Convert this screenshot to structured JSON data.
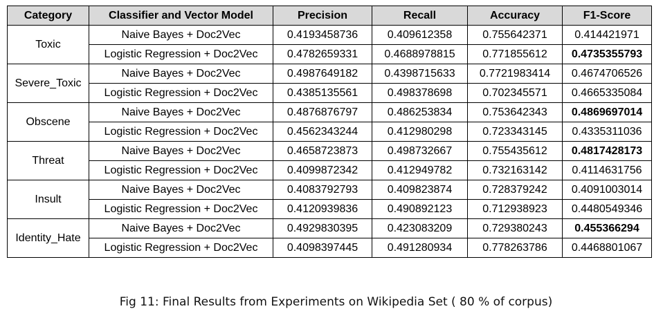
{
  "table": {
    "headers": [
      "Category",
      "Classifier and Vector Model",
      "Precision",
      "Recall",
      "Accuracy",
      "F1-Score"
    ],
    "groups": [
      {
        "category": "Toxic",
        "rows": [
          {
            "model": "Naive Bayes + Doc2Vec",
            "precision": "0.4193458736",
            "recall": "0.409612358",
            "accuracy": "0.755642371",
            "f1": "0.414421971",
            "f1_bold": false
          },
          {
            "model": "Logistic Regression + Doc2Vec",
            "precision": "0.4782659331",
            "recall": "0.4688978815",
            "accuracy": "0.771855612",
            "f1": "0.4735355793",
            "f1_bold": true
          }
        ]
      },
      {
        "category": "Severe_Toxic",
        "rows": [
          {
            "model": "Naive Bayes + Doc2Vec",
            "precision": "0.4987649182",
            "recall": "0.4398715633",
            "accuracy": "0.7721983414",
            "f1": "0.4674706526",
            "f1_bold": false
          },
          {
            "model": "Logistic Regression + Doc2Vec",
            "precision": "0.4385135561",
            "recall": "0.498378698",
            "accuracy": "0.702345571",
            "f1": "0.4665335084",
            "f1_bold": false
          }
        ]
      },
      {
        "category": "Obscene",
        "rows": [
          {
            "model": "Naive Bayes + Doc2Vec",
            "precision": "0.4876876797",
            "recall": "0.486253834",
            "accuracy": "0.753642343",
            "f1": "0.4869697014",
            "f1_bold": true
          },
          {
            "model": "Logistic Regression + Doc2Vec",
            "precision": "0.4562343244",
            "recall": "0.412980298",
            "accuracy": "0.723343145",
            "f1": "0.4335311036",
            "f1_bold": false
          }
        ]
      },
      {
        "category": "Threat",
        "rows": [
          {
            "model": "Naive Bayes + Doc2Vec",
            "precision": "0.4658723873",
            "recall": "0.498732667",
            "accuracy": "0.755435612",
            "f1": "0.4817428173",
            "f1_bold": true
          },
          {
            "model": "Logistic Regression + Doc2Vec",
            "precision": "0.4099872342",
            "recall": "0.412949782",
            "accuracy": "0.732163142",
            "f1": "0.4114631756",
            "f1_bold": false
          }
        ]
      },
      {
        "category": "Insult",
        "rows": [
          {
            "model": "Naive Bayes + Doc2Vec",
            "precision": "0.4083792793",
            "recall": "0.409823874",
            "accuracy": "0.728379242",
            "f1": "0.4091003014",
            "f1_bold": false
          },
          {
            "model": "Logistic Regression + Doc2Vec",
            "precision": "0.4120939836",
            "recall": "0.490892123",
            "accuracy": "0.712938923",
            "f1": "0.4480549346",
            "f1_bold": false
          }
        ]
      },
      {
        "category": "Identity_Hate",
        "rows": [
          {
            "model": "Naive Bayes + Doc2Vec",
            "precision": "0.4929830395",
            "recall": "0.423083209",
            "accuracy": "0.729380243",
            "f1": "0.455366294",
            "f1_bold": true
          },
          {
            "model": "Logistic Regression + Doc2Vec",
            "precision": "0.4098397445",
            "recall": "0.491280934",
            "accuracy": "0.778263786",
            "f1": "0.4468801067",
            "f1_bold": false
          }
        ]
      }
    ]
  },
  "caption": "Fig 11: Final Results from Experiments on Wikipedia Set ( 80 % of corpus)",
  "colors": {
    "header_bg": "#d9d9d9",
    "border": "#000000"
  }
}
